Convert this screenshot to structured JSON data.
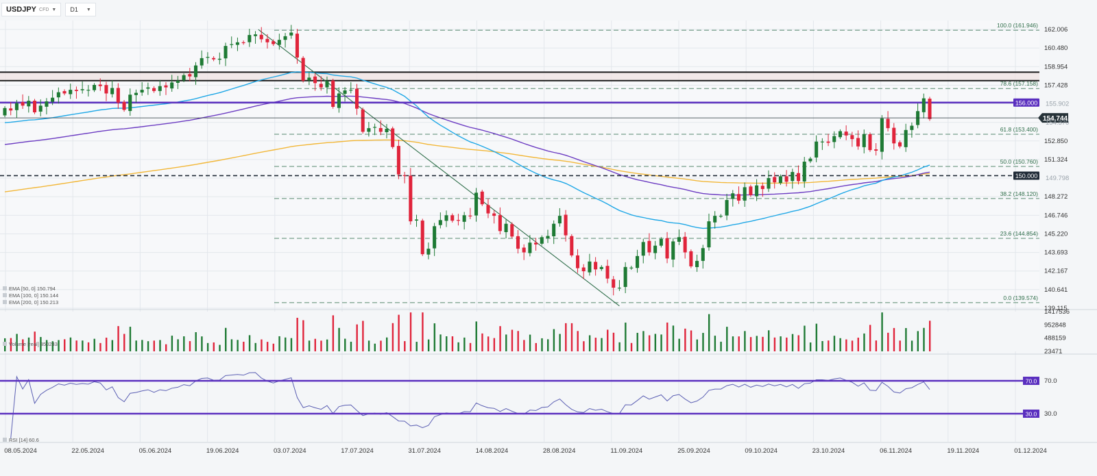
{
  "toolbar": {
    "symbol": "USDJPY",
    "source": "CFD",
    "timeframe": "D1",
    "symbol_icon": "chevron-down-icon",
    "timeframe_icon": "chevron-down-icon"
  },
  "colors": {
    "up": "#1e7a34",
    "down": "#e0243b",
    "ema50": "#1ea7e6",
    "ema100": "#6c3cc2",
    "ema200": "#f2b738",
    "level": "#5a2fbf",
    "fib": "#2f6e4a",
    "trend": "#2f6e4a",
    "resistance": "#1a1a1a",
    "price_tag": "#263238"
  },
  "chart_data": [
    {
      "type": "candlestick",
      "name": "price",
      "x_dates": [
        "08.05.2024",
        "22.05.2024",
        "05.06.2024",
        "19.06.2024",
        "03.07.2024",
        "17.07.2024",
        "31.07.2024",
        "14.08.2024",
        "28.08.2024",
        "11.09.2024",
        "25.09.2024",
        "09.10.2024",
        "23.10.2024",
        "06.11.2024",
        "19.11.2024",
        "01.12.2024"
      ],
      "price_axis_labels": [
        "162.006",
        "160.480",
        "158.954",
        "157.428",
        "155.902",
        "154.370",
        "152.850",
        "151.324",
        "149.798",
        "148.272",
        "146.746",
        "145.220",
        "143.693",
        "142.167",
        "140.641",
        "139.115"
      ],
      "ylim": [
        139.115,
        162.006
      ],
      "closes": [
        155.55,
        155.35,
        155.95,
        155.75,
        156.15,
        155.2,
        155.75,
        156.1,
        156.4,
        156.85,
        156.75,
        157.05,
        156.95,
        157.1,
        157.05,
        157.45,
        157.35,
        156.75,
        157.2,
        156.0,
        155.4,
        156.65,
        156.8,
        157.05,
        157.25,
        156.95,
        157.35,
        157.25,
        157.65,
        157.8,
        158.25,
        158.15,
        159.05,
        159.65,
        159.75,
        159.55,
        159.6,
        160.65,
        160.8,
        160.95,
        160.9,
        161.55,
        161.6,
        161.2,
        160.95,
        160.8,
        161.15,
        161.45,
        161.75,
        159.7,
        157.8,
        158.05,
        157.6,
        157.25,
        157.75,
        155.65,
        156.75,
        157.0,
        157.05,
        155.5,
        153.6,
        153.9,
        154.0,
        153.6,
        153.85,
        152.35,
        150.1,
        150.0,
        146.25,
        146.4,
        143.55,
        144.0,
        145.85,
        146.35,
        146.75,
        146.3,
        146.3,
        146.75,
        146.7,
        148.6,
        147.65,
        146.9,
        146.7,
        145.45,
        146.05,
        145.0,
        144.0,
        143.7,
        144.5,
        144.35,
        144.95,
        145.05,
        146.05,
        146.7,
        145.1,
        143.45,
        142.4,
        142.15,
        142.95,
        142.3,
        142.5,
        141.55,
        140.8,
        140.8,
        142.5,
        142.45,
        143.4,
        144.55,
        143.7,
        144.25,
        144.8,
        143.2,
        144.6,
        144.95,
        143.7,
        142.55,
        143.0,
        144.05,
        146.25,
        146.7,
        146.7,
        148.0,
        148.55,
        147.95,
        149.05,
        148.4,
        149.2,
        148.9,
        149.8,
        149.45,
        149.95,
        149.5,
        150.3,
        149.55,
        151.15,
        151.4,
        152.8,
        152.8,
        152.7,
        153.25,
        153.65,
        153.3,
        153.0,
        152.4,
        153.4,
        152.1,
        152.05,
        154.7,
        153.9,
        152.65,
        152.4,
        153.75,
        154.1,
        155.3,
        156.35,
        154.65
      ],
      "volumes_title": "Volume",
      "volume_axis_labels": [
        "1417536",
        "952848",
        "488159",
        "23471"
      ],
      "volume_ylim": [
        23471,
        1417536
      ]
    },
    {
      "type": "line",
      "name": "RSI",
      "ylim": [
        0,
        100
      ],
      "levels": [
        70.0,
        30.0
      ],
      "level_labels": [
        "70.0",
        "30.0"
      ]
    }
  ],
  "price_levels": [
    {
      "label": "156.000",
      "value": 156.0,
      "style": "solid"
    },
    {
      "label": "150.000",
      "value": 150.0,
      "style": "dashed"
    }
  ],
  "current_price": {
    "label": "154.744",
    "value": 154.744
  },
  "resistance_zone": [
    157.8,
    158.5
  ],
  "fibonacci": [
    {
      "label": "100.0 (161.946)",
      "value": 161.946
    },
    {
      "label": "78.6 (157.158)",
      "value": 157.158
    },
    {
      "label": "61.8 (153.400)",
      "value": 153.4
    },
    {
      "label": "50.0 (150.760)",
      "value": 150.76
    },
    {
      "label": "38.2 (148.120)",
      "value": 148.12
    },
    {
      "label": "23.6 (144.854)",
      "value": 144.854
    },
    {
      "label": "0.0 (139.574)",
      "value": 139.574
    }
  ],
  "legend": {
    "ema50": "EMA [50, 0] 150.794",
    "ema100": "EMA [100, 0] 150.144",
    "ema200": "EMA [200, 0] 150.213",
    "volume": "Volume [real] 350233",
    "rsi": "RSI [14] 60.6",
    "legend_icon": "indicator-settings-icon"
  }
}
